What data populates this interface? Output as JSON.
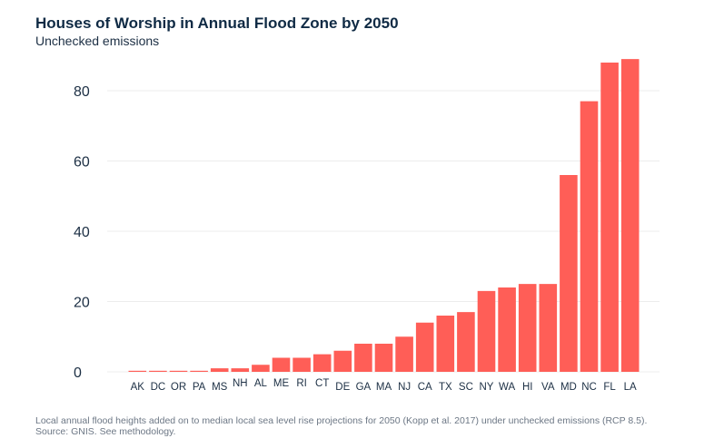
{
  "chart_data": {
    "type": "bar",
    "title": "Houses of Worship in Annual Flood Zone by 2050",
    "subtitle": "Unchecked emissions",
    "xlabel": "",
    "ylabel": "",
    "ylim": [
      0,
      90
    ],
    "yticks": [
      0,
      20,
      40,
      60,
      80
    ],
    "grid": true,
    "bar_color": "#FF5E57",
    "categories": [
      "AK",
      "DC",
      "OR",
      "PA",
      "MS",
      "NH",
      "AL",
      "ME",
      "RI",
      "CT",
      "DE",
      "GA",
      "MA",
      "NJ",
      "CA",
      "TX",
      "SC",
      "NY",
      "WA",
      "HI",
      "VA",
      "MD",
      "NC",
      "FL",
      "LA"
    ],
    "values": [
      0.3,
      0.3,
      0.3,
      0.3,
      1,
      1,
      2,
      4,
      4,
      5,
      6,
      8,
      8,
      10,
      14,
      16,
      17,
      23,
      24,
      25,
      25,
      56,
      77,
      88,
      89
    ]
  },
  "footnote": {
    "line1": "Local annual flood heights added on to median local sea level rise projections for 2050 (Kopp et al. 2017) under unchecked emissions (RCP 8.5).",
    "line2": "Source: GNIS. See methodology."
  }
}
